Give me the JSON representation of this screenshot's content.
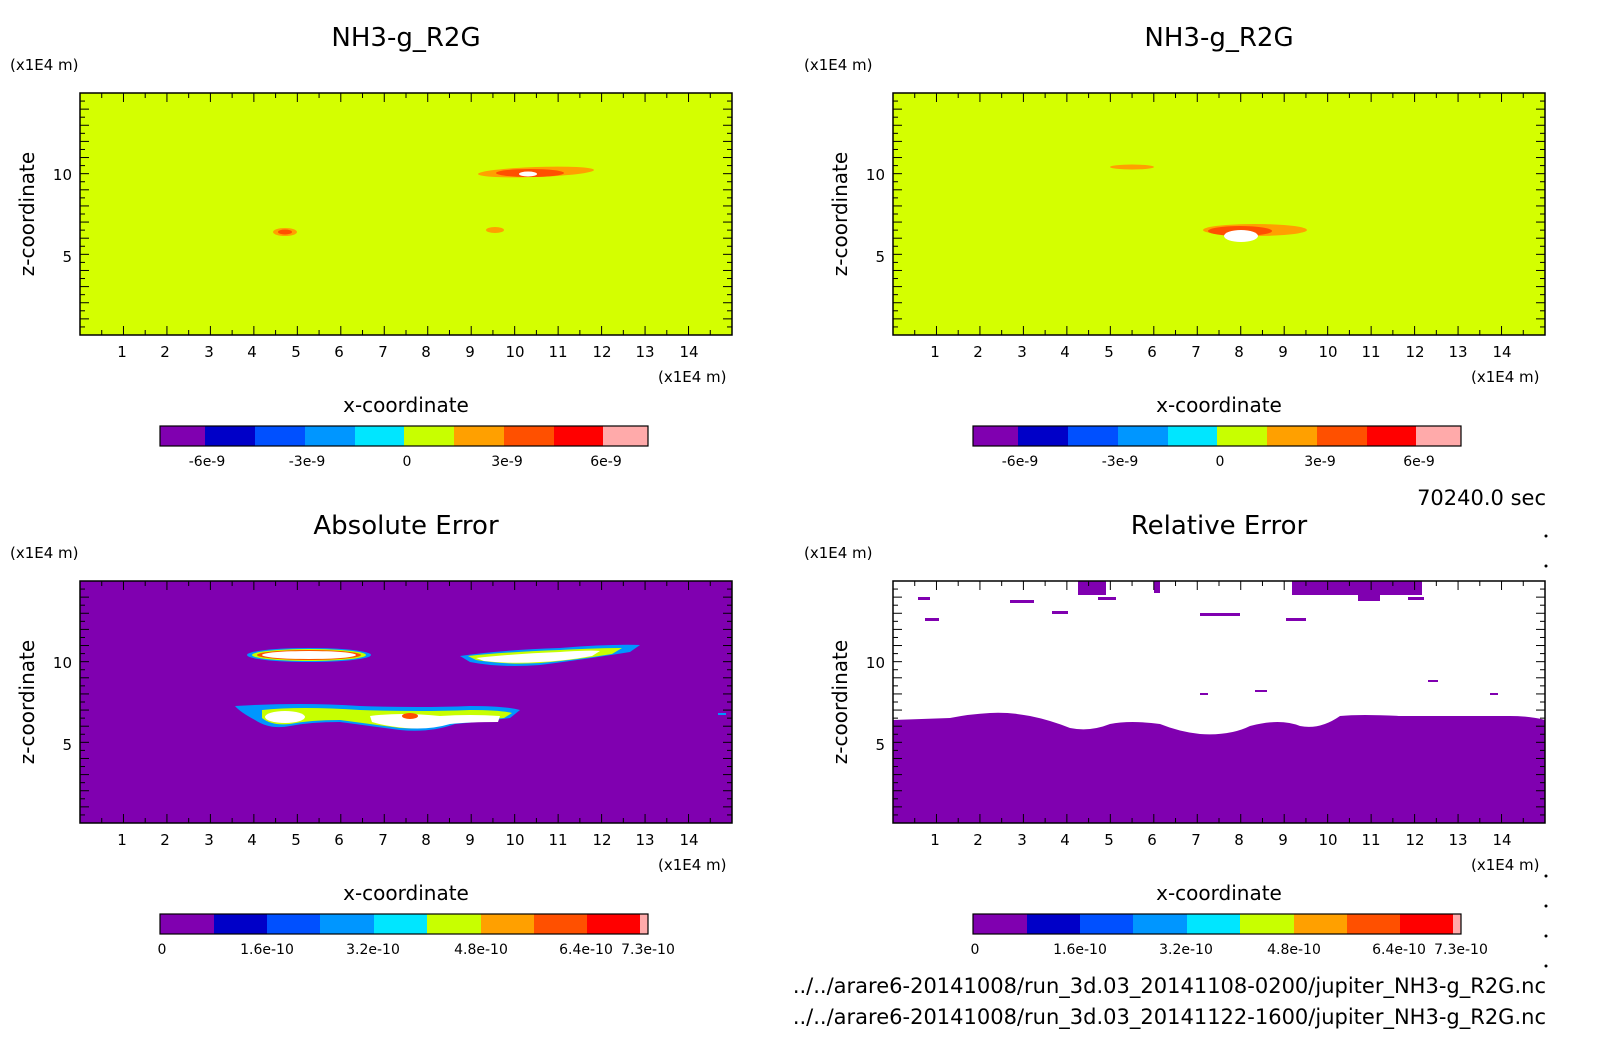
{
  "panels": [
    {
      "id": "top-left",
      "title": "NH3-g_R2G",
      "unit_x": "(x1E4 m)",
      "unit_z": "(x1E4 m)",
      "xlabel": "x-coordinate",
      "ylabel": "z-coordinate",
      "x_ticks": [
        "1",
        "2",
        "3",
        "4",
        "5",
        "6",
        "7",
        "8",
        "9",
        "10",
        "11",
        "12",
        "13",
        "14"
      ],
      "z_ticks": [
        "5",
        "10"
      ],
      "background": "#d4ff00",
      "colorbar": {
        "colors": [
          "#8000b0",
          "#0000c8",
          "#0050ff",
          "#0096ff",
          "#00e6ff",
          "#c8ff00",
          "#ffa000",
          "#ff5000",
          "#ff0000",
          "#ffaaaa"
        ],
        "labels": [
          "-6e-9",
          "-3e-9",
          "0",
          "3e-9",
          "6e-9"
        ]
      }
    },
    {
      "id": "top-right",
      "title": "NH3-g_R2G",
      "unit_x": "(x1E4 m)",
      "unit_z": "(x1E4 m)",
      "xlabel": "x-coordinate",
      "ylabel": "z-coordinate",
      "x_ticks": [
        "1",
        "2",
        "3",
        "4",
        "5",
        "6",
        "7",
        "8",
        "9",
        "10",
        "11",
        "12",
        "13",
        "14"
      ],
      "z_ticks": [
        "5",
        "10"
      ],
      "background": "#d4ff00",
      "colorbar": {
        "colors": [
          "#8000b0",
          "#0000c8",
          "#0050ff",
          "#0096ff",
          "#00e6ff",
          "#c8ff00",
          "#ffa000",
          "#ff5000",
          "#ff0000",
          "#ffaaaa"
        ],
        "labels": [
          "-6e-9",
          "-3e-9",
          "0",
          "3e-9",
          "6e-9"
        ]
      }
    },
    {
      "id": "bottom-left",
      "title": "Absolute Error",
      "unit_x": "(x1E4 m)",
      "unit_z": "(x1E4 m)",
      "xlabel": "x-coordinate",
      "ylabel": "z-coordinate",
      "x_ticks": [
        "1",
        "2",
        "3",
        "4",
        "5",
        "6",
        "7",
        "8",
        "9",
        "10",
        "11",
        "12",
        "13",
        "14"
      ],
      "z_ticks": [
        "5",
        "10"
      ],
      "background": "#8000b0",
      "colorbar": {
        "colors": [
          "#8000b0",
          "#0000c8",
          "#0050ff",
          "#0096ff",
          "#00e6ff",
          "#c8ff00",
          "#ffa000",
          "#ff5000",
          "#ff0000",
          "#ffaaaa"
        ],
        "labels": [
          "0",
          "1.6e-10",
          "3.2e-10",
          "4.8e-10",
          "6.4e-10",
          "7.3e-10"
        ]
      }
    },
    {
      "id": "bottom-right",
      "title": "Relative Error",
      "unit_x": "(x1E4 m)",
      "unit_z": "(x1E4 m)",
      "xlabel": "x-coordinate",
      "ylabel": "z-coordinate",
      "x_ticks": [
        "1",
        "2",
        "3",
        "4",
        "5",
        "6",
        "7",
        "8",
        "9",
        "10",
        "11",
        "12",
        "13",
        "14"
      ],
      "z_ticks": [
        "5",
        "10"
      ],
      "background": "#8000b0",
      "colorbar": {
        "colors": [
          "#8000b0",
          "#0000c8",
          "#0050ff",
          "#0096ff",
          "#00e6ff",
          "#c8ff00",
          "#ffa000",
          "#ff5000",
          "#ff0000",
          "#ffaaaa"
        ],
        "labels": [
          "0",
          "1.6e-10",
          "3.2e-10",
          "4.8e-10",
          "6.4e-10",
          "7.3e-10"
        ]
      }
    }
  ],
  "time_label": "70240.0 sec",
  "file_paths": [
    "../../arare6-20141008/run_3d.03_20141108-0200/jupiter_NH3-g_R2G.nc",
    "../../arare6-20141008/run_3d.03_20141122-1600/jupiter_NH3-g_R2G.nc"
  ],
  "chart_data": [
    {
      "type": "heatmap",
      "title": "NH3-g_R2G",
      "xlabel": "x-coordinate",
      "ylabel": "z-coordinate",
      "xlim": [
        0,
        15
      ],
      "ylim": [
        0,
        15
      ],
      "x_ticks": [
        1,
        2,
        3,
        4,
        5,
        6,
        7,
        8,
        9,
        10,
        11,
        12,
        13,
        14
      ],
      "y_ticks": [
        5,
        10
      ],
      "colorbar_ticks": [
        -6e-09,
        -3e-09,
        0,
        3e-09,
        6e-09
      ]
    },
    {
      "type": "heatmap",
      "title": "NH3-g_R2G",
      "xlabel": "x-coordinate",
      "ylabel": "z-coordinate",
      "xlim": [
        0,
        15
      ],
      "ylim": [
        0,
        15
      ],
      "x_ticks": [
        1,
        2,
        3,
        4,
        5,
        6,
        7,
        8,
        9,
        10,
        11,
        12,
        13,
        14
      ],
      "y_ticks": [
        5,
        10
      ],
      "colorbar_ticks": [
        -6e-09,
        -3e-09,
        0,
        3e-09,
        6e-09
      ]
    },
    {
      "type": "heatmap",
      "title": "Absolute Error",
      "xlabel": "x-coordinate",
      "ylabel": "z-coordinate",
      "xlim": [
        0,
        15
      ],
      "ylim": [
        0,
        15
      ],
      "x_ticks": [
        1,
        2,
        3,
        4,
        5,
        6,
        7,
        8,
        9,
        10,
        11,
        12,
        13,
        14
      ],
      "y_ticks": [
        5,
        10
      ],
      "colorbar_ticks": [
        0,
        1.6e-10,
        3.2e-10,
        4.8e-10,
        6.4e-10,
        7.3e-10
      ]
    },
    {
      "type": "heatmap",
      "title": "Relative Error",
      "xlabel": "x-coordinate",
      "ylabel": "z-coordinate",
      "xlim": [
        0,
        15
      ],
      "ylim": [
        0,
        15
      ],
      "x_ticks": [
        1,
        2,
        3,
        4,
        5,
        6,
        7,
        8,
        9,
        10,
        11,
        12,
        13,
        14
      ],
      "y_ticks": [
        5,
        10
      ],
      "colorbar_ticks": [
        0,
        1.6e-10,
        3.2e-10,
        4.8e-10,
        6.4e-10,
        7.3e-10
      ]
    }
  ]
}
